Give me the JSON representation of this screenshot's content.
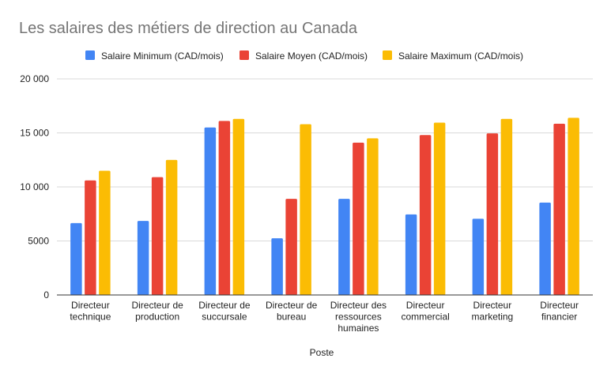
{
  "chart_data": {
    "type": "bar",
    "title": "Les salaires des métiers de direction au Canada",
    "xlabel": "Poste",
    "ylabel": "",
    "ylim": [
      0,
      20000
    ],
    "yticks": [
      "0",
      "5000",
      "10 000",
      "15 000",
      "20 000"
    ],
    "ytick_values": [
      0,
      5000,
      10000,
      15000,
      20000
    ],
    "grid": true,
    "legend_position": "top",
    "categories": [
      [
        "Directeur",
        "technique"
      ],
      [
        "Directeur de",
        "production"
      ],
      [
        "Directeur de",
        "succursale"
      ],
      [
        "Directeur de",
        "bureau"
      ],
      [
        "Directeur des",
        "ressources",
        "humaines"
      ],
      [
        "Directeur",
        "commercial"
      ],
      [
        "Directeur",
        "marketing"
      ],
      [
        "Directeur",
        "financier"
      ]
    ],
    "series": [
      {
        "name": "Salaire Minimum (CAD/mois)",
        "color": "#4285F4",
        "values": [
          6650,
          6850,
          15500,
          5250,
          8900,
          7450,
          7050,
          8550
        ]
      },
      {
        "name": "Salaire Moyen (CAD/mois)",
        "color": "#EA4335",
        "values": [
          10600,
          10900,
          16100,
          8900,
          14100,
          14800,
          14950,
          15850
        ]
      },
      {
        "name": "Salaire Maximum (CAD/mois)",
        "color": "#FBBC04",
        "values": [
          11500,
          12500,
          16300,
          15800,
          14500,
          15950,
          16300,
          16400
        ]
      }
    ]
  }
}
